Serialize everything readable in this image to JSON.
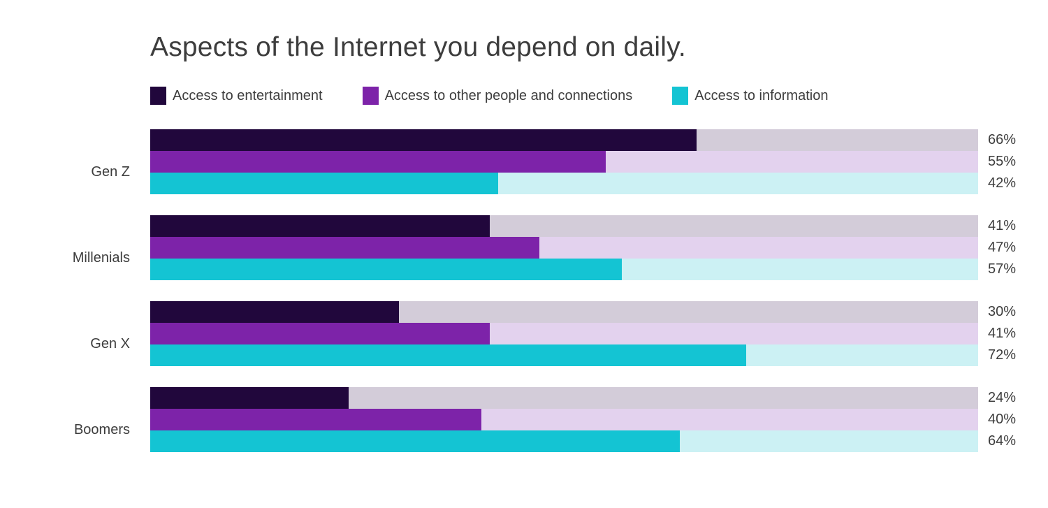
{
  "title": "Aspects of the Internet you depend on daily.",
  "colors": {
    "background": "#ffffff",
    "text": "#3d3d3d"
  },
  "legend": {
    "position": "top"
  },
  "chart_data": {
    "type": "bar",
    "orientation": "horizontal",
    "title": "Aspects of the Internet you depend on daily.",
    "categories": [
      "Gen Z",
      "Millenials",
      "Gen X",
      "Boomers"
    ],
    "series": [
      {
        "name": "Access to entertainment",
        "color": "#21073c",
        "track_color": "#d3ccd9",
        "values": [
          66,
          41,
          30,
          24
        ]
      },
      {
        "name": "Access to other people and connections",
        "color": "#7d23a9",
        "track_color": "#e3d2ee",
        "values": [
          55,
          47,
          41,
          40
        ]
      },
      {
        "name": "Access to information",
        "color": "#14c4d3",
        "track_color": "#ccf1f4",
        "values": [
          42,
          57,
          72,
          64
        ]
      }
    ],
    "value_suffix": "%",
    "value_labels": [
      [
        "66%",
        "55%",
        "42%"
      ],
      [
        "41%",
        "47%",
        "57%"
      ],
      [
        "30%",
        "41%",
        "72%"
      ],
      [
        "24%",
        "40%",
        "64%"
      ]
    ],
    "xlim": [
      0,
      100
    ],
    "grid": false,
    "legend_position": "top"
  }
}
